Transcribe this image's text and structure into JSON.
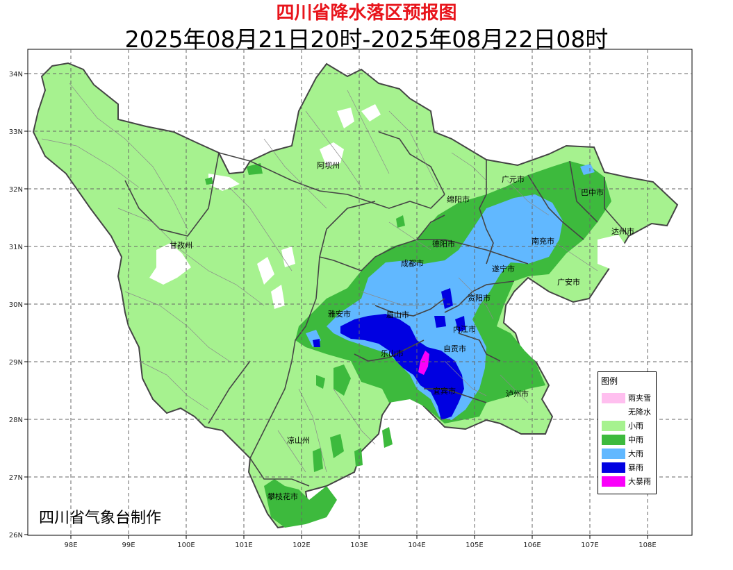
{
  "title": "四川省降水落区预报图",
  "subtitle": "2025年08月21日20时-2025年08月22日08时",
  "credit": "四川省气象台制作",
  "axes": {
    "lat_labels": [
      "34N",
      "33N",
      "32N",
      "31N",
      "30N",
      "29N",
      "28N",
      "27N",
      "26N"
    ],
    "lon_labels": [
      "98E",
      "99E",
      "100E",
      "101E",
      "102E",
      "103E",
      "104E",
      "105E",
      "106E",
      "107E",
      "108E"
    ]
  },
  "cities": [
    "阿坝州",
    "甘孜州",
    "绵阳市",
    "广元市",
    "巴中市",
    "达州市",
    "南充市",
    "德阳市",
    "成都市",
    "遂宁市",
    "广安市",
    "资阳市",
    "雅安市",
    "眉山市",
    "内江市",
    "乐山市",
    "自贡市",
    "宜宾市",
    "泸州市",
    "凉山州",
    "攀枝花市"
  ],
  "legend": {
    "title": "图例",
    "items": [
      {
        "label": "雨夹雪",
        "color": "#ffbfef"
      },
      {
        "label": "无降水",
        "color": "#ffffff"
      },
      {
        "label": "小雨",
        "color": "#a6f28f"
      },
      {
        "label": "中雨",
        "color": "#3dba3d"
      },
      {
        "label": "大雨",
        "color": "#61b8ff"
      },
      {
        "label": "暴雨",
        "color": "#0000e1"
      },
      {
        "label": "大暴雨",
        "color": "#fa00fa"
      }
    ]
  }
}
